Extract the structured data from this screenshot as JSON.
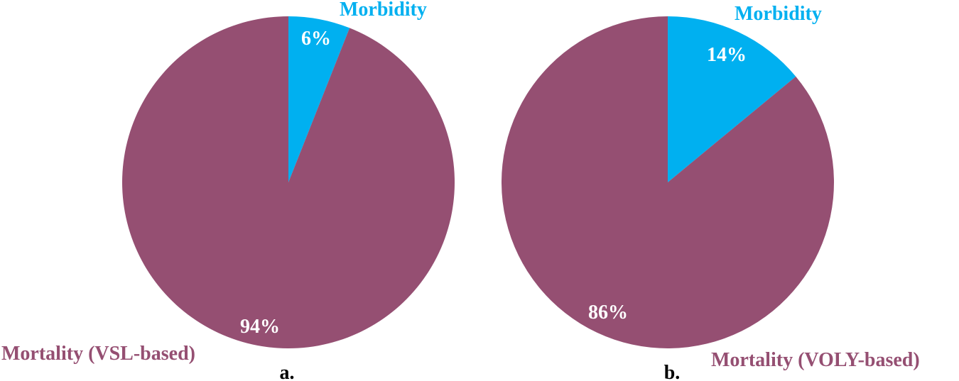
{
  "chart_data": [
    {
      "type": "pie",
      "panel_label": "a.",
      "colors": {
        "Morbidity": "#00B0F0",
        "Mortality": "#954F72"
      },
      "slices": [
        {
          "name": "Morbidity",
          "label": "Morbidity",
          "value": 6,
          "value_label": "6%",
          "color": "#00B0F0"
        },
        {
          "name": "Mortality",
          "label": "Mortality (VSL-based)",
          "value": 94,
          "value_label": "94%",
          "color": "#954F72"
        }
      ]
    },
    {
      "type": "pie",
      "panel_label": "b.",
      "colors": {
        "Morbidity": "#00B0F0",
        "Mortality": "#954F72"
      },
      "slices": [
        {
          "name": "Morbidity",
          "label": "Morbidity",
          "value": 14,
          "value_label": "14%",
          "color": "#00B0F0"
        },
        {
          "name": "Mortality",
          "label": "Mortality (VOLY-based)",
          "value": 86,
          "value_label": "86%",
          "color": "#954F72"
        }
      ]
    }
  ]
}
